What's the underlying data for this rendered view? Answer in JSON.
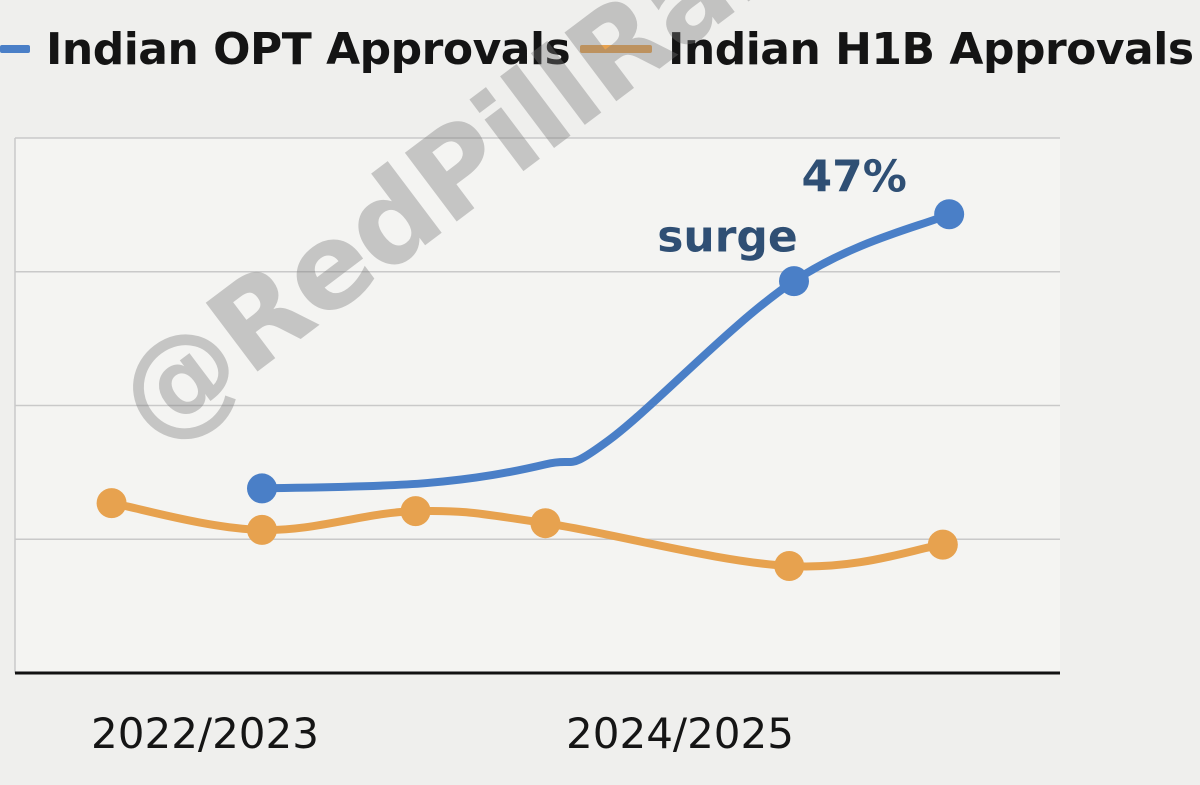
{
  "legend": {
    "opt_label": "Indian OPT Approvals",
    "h1b_label": "Indian H1B Approvals"
  },
  "colors": {
    "opt": "#4a7fc7",
    "h1b": "#e7a24f",
    "annotation": "#2f4f74",
    "grid": "#c9c9c9",
    "axis": "#111111"
  },
  "watermark": "@RedPillRabbit",
  "chart_data": {
    "type": "line",
    "title": "",
    "xlabel": "",
    "ylabel": "",
    "x_ticks": [
      {
        "label": "2022/2023",
        "x": 1.2
      },
      {
        "label": "2024/2025",
        "x": 4.2
      }
    ],
    "xlim": [
      0,
      6.6
    ],
    "ylim": [
      0,
      4
    ],
    "grid": "horizontal",
    "legend_position": "top",
    "series": [
      {
        "name": "Indian OPT Approvals",
        "key": "opt",
        "points": [
          {
            "x": 1.56,
            "y": 1.38,
            "marker": true
          },
          {
            "x": 2.6,
            "y": 1.42,
            "marker": false
          },
          {
            "x": 3.35,
            "y": 1.56,
            "marker": false
          },
          {
            "x": 3.75,
            "y": 1.74,
            "marker": false
          },
          {
            "x": 4.92,
            "y": 2.93,
            "marker": true
          },
          {
            "x": 5.9,
            "y": 3.43,
            "marker": true
          }
        ]
      },
      {
        "name": "Indian H1B Approvals",
        "key": "h1b",
        "points": [
          {
            "x": 0.61,
            "y": 1.27,
            "marker": true
          },
          {
            "x": 1.56,
            "y": 1.07,
            "marker": true
          },
          {
            "x": 2.53,
            "y": 1.21,
            "marker": true
          },
          {
            "x": 3.35,
            "y": 1.12,
            "marker": true
          },
          {
            "x": 4.89,
            "y": 0.8,
            "marker": true
          },
          {
            "x": 5.86,
            "y": 0.96,
            "marker": true
          }
        ]
      }
    ],
    "annotations": [
      {
        "text": "surge",
        "x": 4.5,
        "y": 3.15
      },
      {
        "text": "47%",
        "x": 5.3,
        "y": 3.6
      }
    ]
  }
}
